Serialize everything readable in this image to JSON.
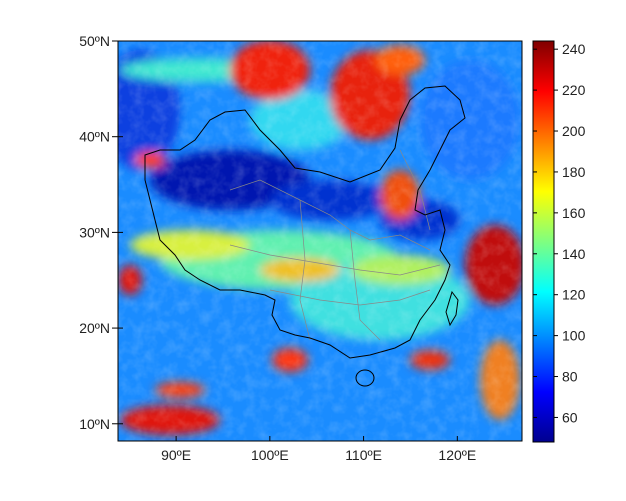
{
  "map": {
    "x_ticks": [
      "90ºE",
      "100ºE",
      "110ºE",
      "120ºE"
    ],
    "x_tick_values": [
      90,
      100,
      110,
      120
    ],
    "y_ticks": [
      "10ºN",
      "20ºN",
      "30ºN",
      "40ºN",
      "50ºN"
    ],
    "y_tick_values": [
      10,
      20,
      30,
      40,
      50
    ],
    "lon_range": [
      83.8,
      126.9
    ],
    "lat_range": [
      8.2,
      50
    ],
    "colormap": "jet",
    "overlays": [
      "China national boundary (black)",
      "province boundaries (grey)"
    ]
  },
  "colorbar": {
    "ticks": [
      "60",
      "80",
      "100",
      "120",
      "140",
      "160",
      "180",
      "200",
      "220",
      "240"
    ],
    "tick_values": [
      60,
      80,
      100,
      120,
      140,
      160,
      180,
      200,
      220,
      240
    ],
    "range": [
      48,
      244
    ]
  }
}
